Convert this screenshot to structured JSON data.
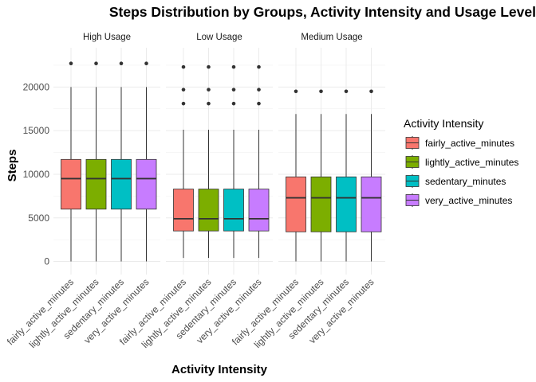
{
  "chart_data": {
    "type": "boxplot",
    "title": "Steps Distribution by Groups, Activity Intensity and Usage Level",
    "xlabel": "Activity Intensity",
    "ylabel": "Steps",
    "ylim": [
      -1500,
      24500
    ],
    "y_ticks": [
      0,
      5000,
      10000,
      15000,
      20000
    ],
    "y_tick_labels": [
      "0",
      "5000",
      "10000",
      "15000",
      "20000"
    ],
    "grid": true,
    "legend": {
      "title": "Activity Intensity",
      "position": "right",
      "entries": [
        {
          "label": "fairly_active_minutes",
          "color": "#F8766D"
        },
        {
          "label": "lightly_active_minutes",
          "color": "#7CAE00"
        },
        {
          "label": "sedentary_minutes",
          "color": "#00BFC4"
        },
        {
          "label": "very_active_minutes",
          "color": "#C77CFF"
        }
      ]
    },
    "categories": [
      "fairly_active_minutes",
      "lightly_active_minutes",
      "sedentary_minutes",
      "very_active_minutes"
    ],
    "facets": [
      {
        "label": "High Usage",
        "stats": {
          "whisker_low": 0,
          "q1": 6000,
          "median": 9500,
          "q3": 11700,
          "whisker_high": 20000
        },
        "outliers": [
          22700
        ]
      },
      {
        "label": "Low Usage",
        "stats": {
          "whisker_low": 400,
          "q1": 3500,
          "median": 4900,
          "q3": 8300,
          "whisker_high": 15100
        },
        "outliers": [
          18100,
          19700,
          22300
        ]
      },
      {
        "label": "Medium Usage",
        "stats": {
          "whisker_low": 0,
          "q1": 3400,
          "median": 7300,
          "q3": 9700,
          "whisker_high": 16900
        },
        "outliers": [
          19500
        ]
      }
    ]
  }
}
